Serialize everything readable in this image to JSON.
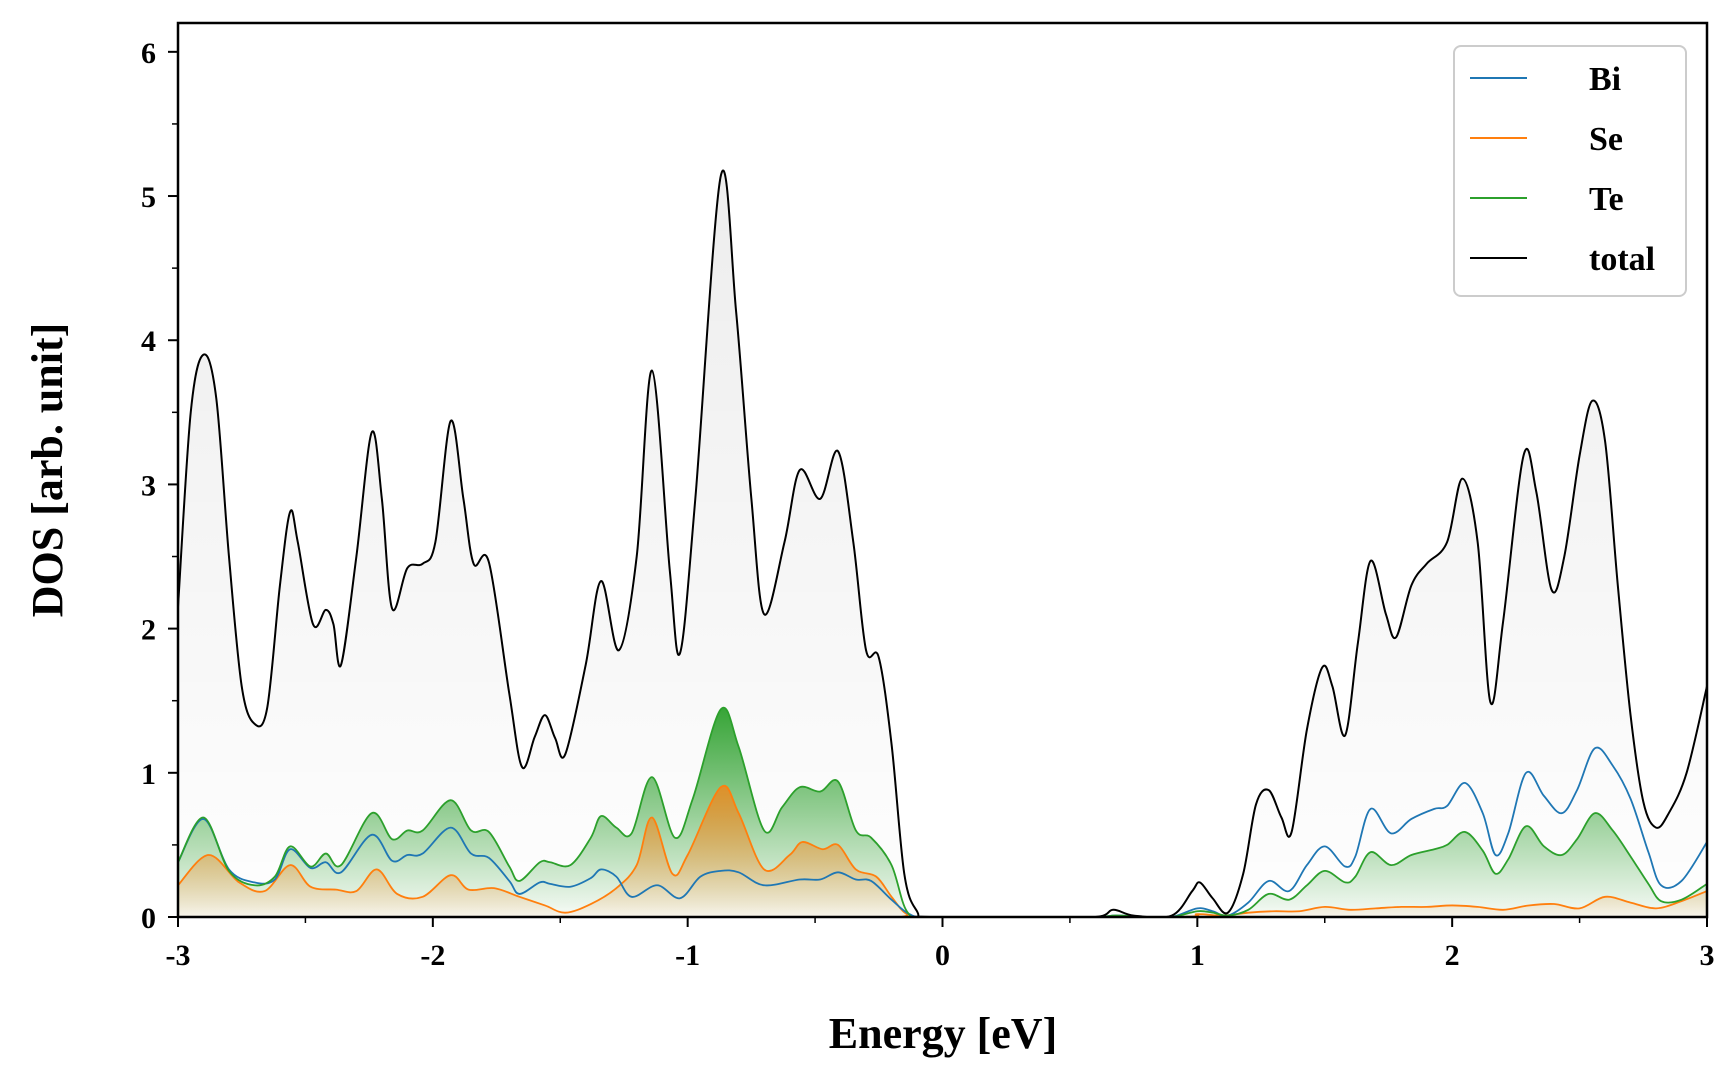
{
  "chart_data": {
    "type": "area",
    "xlabel": "Energy [eV]",
    "ylabel": "DOS [arb. unit]",
    "xlim": [
      -3,
      3
    ],
    "ylim": [
      0,
      6.2
    ],
    "x_ticks": [
      -3,
      -2,
      -1,
      0,
      1,
      2,
      3
    ],
    "x_tick_labels": [
      "-3",
      "-2",
      "-1",
      "0",
      "1",
      "2",
      "3"
    ],
    "y_ticks": [
      0,
      1,
      2,
      3,
      4,
      5,
      6
    ],
    "y_tick_labels": [
      "0",
      "1",
      "2",
      "3",
      "4",
      "5",
      "6"
    ],
    "grid": false,
    "legend_position": "top-right",
    "series": [
      {
        "name": "Bi",
        "color": "#1f77b4",
        "filled": false,
        "points": [
          [
            -3.0,
            0.38
          ],
          [
            -2.9,
            0.68
          ],
          [
            -2.8,
            0.33
          ],
          [
            -2.7,
            0.24
          ],
          [
            -2.62,
            0.26
          ],
          [
            -2.56,
            0.47
          ],
          [
            -2.48,
            0.34
          ],
          [
            -2.42,
            0.38
          ],
          [
            -2.36,
            0.31
          ],
          [
            -2.24,
            0.57
          ],
          [
            -2.16,
            0.39
          ],
          [
            -2.1,
            0.43
          ],
          [
            -2.04,
            0.44
          ],
          [
            -1.93,
            0.62
          ],
          [
            -1.85,
            0.44
          ],
          [
            -1.78,
            0.41
          ],
          [
            -1.7,
            0.25
          ],
          [
            -1.66,
            0.16
          ],
          [
            -1.58,
            0.24
          ],
          [
            -1.54,
            0.23
          ],
          [
            -1.46,
            0.21
          ],
          [
            -1.38,
            0.27
          ],
          [
            -1.34,
            0.33
          ],
          [
            -1.28,
            0.28
          ],
          [
            -1.22,
            0.14
          ],
          [
            -1.12,
            0.22
          ],
          [
            -1.03,
            0.13
          ],
          [
            -0.95,
            0.28
          ],
          [
            -0.87,
            0.32
          ],
          [
            -0.8,
            0.31
          ],
          [
            -0.7,
            0.22
          ],
          [
            -0.56,
            0.26
          ],
          [
            -0.48,
            0.26
          ],
          [
            -0.41,
            0.31
          ],
          [
            -0.34,
            0.26
          ],
          [
            -0.28,
            0.25
          ],
          [
            -0.2,
            0.12
          ],
          [
            -0.13,
            0.02
          ],
          [
            -0.05,
            0.0
          ],
          [
            0.3,
            0.0
          ],
          [
            0.6,
            0.0
          ],
          [
            0.68,
            0.01
          ],
          [
            0.8,
            0.0
          ],
          [
            0.9,
            0.0
          ],
          [
            1.0,
            0.06
          ],
          [
            1.06,
            0.04
          ],
          [
            1.12,
            0.01
          ],
          [
            1.2,
            0.1
          ],
          [
            1.28,
            0.25
          ],
          [
            1.36,
            0.18
          ],
          [
            1.43,
            0.36
          ],
          [
            1.5,
            0.49
          ],
          [
            1.58,
            0.35
          ],
          [
            1.62,
            0.42
          ],
          [
            1.68,
            0.75
          ],
          [
            1.76,
            0.58
          ],
          [
            1.84,
            0.68
          ],
          [
            1.93,
            0.75
          ],
          [
            1.98,
            0.77
          ],
          [
            2.05,
            0.93
          ],
          [
            2.12,
            0.72
          ],
          [
            2.17,
            0.43
          ],
          [
            2.22,
            0.58
          ],
          [
            2.29,
            1.0
          ],
          [
            2.36,
            0.84
          ],
          [
            2.43,
            0.72
          ],
          [
            2.49,
            0.88
          ],
          [
            2.56,
            1.17
          ],
          [
            2.63,
            1.05
          ],
          [
            2.7,
            0.82
          ],
          [
            2.77,
            0.45
          ],
          [
            2.82,
            0.22
          ],
          [
            2.9,
            0.25
          ],
          [
            3.0,
            0.52
          ]
        ]
      },
      {
        "name": "Se",
        "color": "#ff7f0e",
        "filled": true,
        "points": [
          [
            -3.0,
            0.22
          ],
          [
            -2.88,
            0.43
          ],
          [
            -2.76,
            0.24
          ],
          [
            -2.66,
            0.18
          ],
          [
            -2.56,
            0.36
          ],
          [
            -2.48,
            0.21
          ],
          [
            -2.38,
            0.19
          ],
          [
            -2.3,
            0.18
          ],
          [
            -2.22,
            0.33
          ],
          [
            -2.14,
            0.16
          ],
          [
            -2.04,
            0.14
          ],
          [
            -1.93,
            0.29
          ],
          [
            -1.86,
            0.19
          ],
          [
            -1.76,
            0.2
          ],
          [
            -1.66,
            0.14
          ],
          [
            -1.56,
            0.08
          ],
          [
            -1.48,
            0.03
          ],
          [
            -1.38,
            0.09
          ],
          [
            -1.28,
            0.2
          ],
          [
            -1.2,
            0.36
          ],
          [
            -1.14,
            0.69
          ],
          [
            -1.06,
            0.3
          ],
          [
            -1.0,
            0.43
          ],
          [
            -0.87,
            0.9
          ],
          [
            -0.8,
            0.72
          ],
          [
            -0.7,
            0.33
          ],
          [
            -0.6,
            0.43
          ],
          [
            -0.55,
            0.52
          ],
          [
            -0.47,
            0.47
          ],
          [
            -0.41,
            0.5
          ],
          [
            -0.34,
            0.33
          ],
          [
            -0.26,
            0.28
          ],
          [
            -0.2,
            0.14
          ],
          [
            -0.14,
            0.02
          ],
          [
            -0.06,
            0.0
          ],
          [
            0.9,
            0.0
          ],
          [
            1.0,
            0.02
          ],
          [
            1.1,
            0.01
          ],
          [
            1.2,
            0.03
          ],
          [
            1.3,
            0.04
          ],
          [
            1.4,
            0.04
          ],
          [
            1.5,
            0.07
          ],
          [
            1.6,
            0.05
          ],
          [
            1.7,
            0.06
          ],
          [
            1.8,
            0.07
          ],
          [
            1.9,
            0.07
          ],
          [
            2.0,
            0.08
          ],
          [
            2.1,
            0.07
          ],
          [
            2.2,
            0.05
          ],
          [
            2.3,
            0.08
          ],
          [
            2.4,
            0.09
          ],
          [
            2.5,
            0.06
          ],
          [
            2.6,
            0.14
          ],
          [
            2.7,
            0.1
          ],
          [
            2.8,
            0.06
          ],
          [
            2.9,
            0.11
          ],
          [
            3.0,
            0.18
          ]
        ]
      },
      {
        "name": "Te",
        "color": "#2ca02c",
        "filled": true,
        "points": [
          [
            -3.0,
            0.38
          ],
          [
            -2.9,
            0.69
          ],
          [
            -2.8,
            0.32
          ],
          [
            -2.7,
            0.22
          ],
          [
            -2.62,
            0.28
          ],
          [
            -2.56,
            0.49
          ],
          [
            -2.48,
            0.35
          ],
          [
            -2.42,
            0.44
          ],
          [
            -2.36,
            0.36
          ],
          [
            -2.24,
            0.72
          ],
          [
            -2.16,
            0.54
          ],
          [
            -2.1,
            0.6
          ],
          [
            -2.04,
            0.6
          ],
          [
            -1.93,
            0.81
          ],
          [
            -1.85,
            0.6
          ],
          [
            -1.78,
            0.59
          ],
          [
            -1.7,
            0.35
          ],
          [
            -1.66,
            0.25
          ],
          [
            -1.58,
            0.38
          ],
          [
            -1.54,
            0.38
          ],
          [
            -1.46,
            0.36
          ],
          [
            -1.38,
            0.55
          ],
          [
            -1.34,
            0.7
          ],
          [
            -1.28,
            0.62
          ],
          [
            -1.22,
            0.58
          ],
          [
            -1.14,
            0.97
          ],
          [
            -1.05,
            0.55
          ],
          [
            -0.98,
            0.82
          ],
          [
            -0.87,
            1.44
          ],
          [
            -0.8,
            1.18
          ],
          [
            -0.7,
            0.6
          ],
          [
            -0.63,
            0.76
          ],
          [
            -0.56,
            0.9
          ],
          [
            -0.48,
            0.87
          ],
          [
            -0.41,
            0.94
          ],
          [
            -0.34,
            0.6
          ],
          [
            -0.28,
            0.55
          ],
          [
            -0.2,
            0.36
          ],
          [
            -0.14,
            0.04
          ],
          [
            -0.06,
            0.0
          ],
          [
            0.3,
            0.0
          ],
          [
            0.6,
            0.0
          ],
          [
            0.68,
            0.01
          ],
          [
            0.8,
            0.0
          ],
          [
            0.9,
            0.0
          ],
          [
            1.0,
            0.04
          ],
          [
            1.06,
            0.03
          ],
          [
            1.12,
            0.01
          ],
          [
            1.2,
            0.05
          ],
          [
            1.28,
            0.16
          ],
          [
            1.36,
            0.12
          ],
          [
            1.43,
            0.22
          ],
          [
            1.5,
            0.32
          ],
          [
            1.58,
            0.24
          ],
          [
            1.62,
            0.28
          ],
          [
            1.68,
            0.45
          ],
          [
            1.76,
            0.36
          ],
          [
            1.84,
            0.43
          ],
          [
            1.93,
            0.47
          ],
          [
            1.98,
            0.5
          ],
          [
            2.05,
            0.59
          ],
          [
            2.12,
            0.46
          ],
          [
            2.17,
            0.3
          ],
          [
            2.22,
            0.4
          ],
          [
            2.29,
            0.63
          ],
          [
            2.36,
            0.49
          ],
          [
            2.43,
            0.43
          ],
          [
            2.49,
            0.54
          ],
          [
            2.56,
            0.72
          ],
          [
            2.63,
            0.6
          ],
          [
            2.7,
            0.42
          ],
          [
            2.77,
            0.23
          ],
          [
            2.82,
            0.11
          ],
          [
            2.9,
            0.12
          ],
          [
            3.0,
            0.23
          ]
        ]
      },
      {
        "name": "total",
        "color": "#000000",
        "filled": true,
        "points": [
          [
            -3.0,
            2.15
          ],
          [
            -2.95,
            3.5
          ],
          [
            -2.9,
            3.9
          ],
          [
            -2.85,
            3.6
          ],
          [
            -2.8,
            2.5
          ],
          [
            -2.75,
            1.6
          ],
          [
            -2.7,
            1.34
          ],
          [
            -2.65,
            1.45
          ],
          [
            -2.6,
            2.3
          ],
          [
            -2.56,
            2.81
          ],
          [
            -2.53,
            2.6
          ],
          [
            -2.47,
            2.03
          ],
          [
            -2.42,
            2.13
          ],
          [
            -2.39,
            2.03
          ],
          [
            -2.36,
            1.75
          ],
          [
            -2.3,
            2.5
          ],
          [
            -2.24,
            3.36
          ],
          [
            -2.2,
            2.9
          ],
          [
            -2.16,
            2.14
          ],
          [
            -2.1,
            2.42
          ],
          [
            -2.04,
            2.45
          ],
          [
            -1.99,
            2.6
          ],
          [
            -1.93,
            3.44
          ],
          [
            -1.88,
            2.9
          ],
          [
            -1.84,
            2.45
          ],
          [
            -1.78,
            2.46
          ],
          [
            -1.7,
            1.55
          ],
          [
            -1.65,
            1.04
          ],
          [
            -1.6,
            1.25
          ],
          [
            -1.56,
            1.4
          ],
          [
            -1.52,
            1.24
          ],
          [
            -1.48,
            1.13
          ],
          [
            -1.4,
            1.75
          ],
          [
            -1.34,
            2.33
          ],
          [
            -1.27,
            1.85
          ],
          [
            -1.2,
            2.5
          ],
          [
            -1.14,
            3.79
          ],
          [
            -1.07,
            2.4
          ],
          [
            -1.03,
            1.83
          ],
          [
            -0.97,
            2.9
          ],
          [
            -0.87,
            5.14
          ],
          [
            -0.81,
            4.2
          ],
          [
            -0.75,
            2.9
          ],
          [
            -0.7,
            2.1
          ],
          [
            -0.62,
            2.6
          ],
          [
            -0.56,
            3.1
          ],
          [
            -0.48,
            2.9
          ],
          [
            -0.41,
            3.23
          ],
          [
            -0.35,
            2.6
          ],
          [
            -0.3,
            1.85
          ],
          [
            -0.25,
            1.8
          ],
          [
            -0.2,
            1.2
          ],
          [
            -0.15,
            0.3
          ],
          [
            -0.1,
            0.04
          ],
          [
            -0.05,
            0.0
          ],
          [
            0.3,
            0.0
          ],
          [
            0.6,
            0.0
          ],
          [
            0.67,
            0.05
          ],
          [
            0.75,
            0.01
          ],
          [
            0.9,
            0.01
          ],
          [
            0.98,
            0.18
          ],
          [
            1.01,
            0.24
          ],
          [
            1.06,
            0.13
          ],
          [
            1.12,
            0.03
          ],
          [
            1.18,
            0.3
          ],
          [
            1.23,
            0.78
          ],
          [
            1.28,
            0.88
          ],
          [
            1.33,
            0.69
          ],
          [
            1.37,
            0.59
          ],
          [
            1.43,
            1.3
          ],
          [
            1.49,
            1.73
          ],
          [
            1.53,
            1.6
          ],
          [
            1.58,
            1.26
          ],
          [
            1.63,
            1.9
          ],
          [
            1.68,
            2.47
          ],
          [
            1.74,
            2.1
          ],
          [
            1.78,
            1.94
          ],
          [
            1.84,
            2.3
          ],
          [
            1.9,
            2.45
          ],
          [
            1.98,
            2.6
          ],
          [
            2.04,
            3.04
          ],
          [
            2.1,
            2.6
          ],
          [
            2.15,
            1.49
          ],
          [
            2.2,
            2.05
          ],
          [
            2.28,
            3.2
          ],
          [
            2.33,
            2.95
          ],
          [
            2.39,
            2.27
          ],
          [
            2.44,
            2.5
          ],
          [
            2.5,
            3.2
          ],
          [
            2.55,
            3.58
          ],
          [
            2.6,
            3.3
          ],
          [
            2.65,
            2.3
          ],
          [
            2.7,
            1.4
          ],
          [
            2.75,
            0.8
          ],
          [
            2.8,
            0.62
          ],
          [
            2.85,
            0.72
          ],
          [
            2.92,
            1.0
          ],
          [
            3.0,
            1.6
          ]
        ]
      }
    ]
  }
}
